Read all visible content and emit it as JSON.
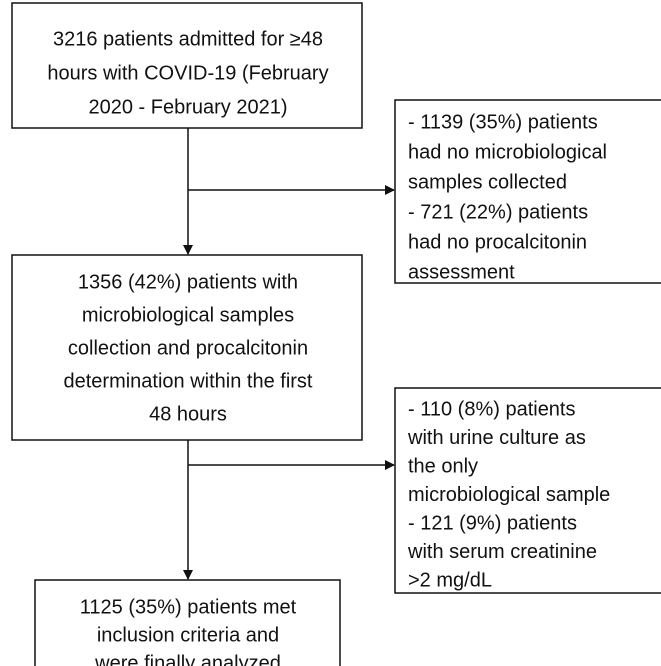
{
  "nodes": [
    {
      "lines": [
        "3216 patients admitted for ≥48",
        "hours with COVID-19 (February",
        "2020 - February 2021)"
      ]
    },
    {
      "lines": [
        "- 1139 (35%) patients",
        "had no microbiological",
        "samples collected",
        "- 721 (22%) patients",
        "had no procalcitonin",
        "assessment"
      ]
    },
    {
      "lines": [
        "1356 (42%) patients with",
        "microbiological samples",
        "collection and procalcitonin",
        "determination within the first",
        "48 hours"
      ]
    },
    {
      "lines": [
        "- 110 (8%) patients",
        "with urine culture as",
        "the only",
        "microbiological sample",
        "- 121 (9%) patients",
        "with serum creatinine",
        ">2 mg/dL"
      ]
    },
    {
      "lines": [
        "1125 (35%) patients met",
        "inclusion criteria and",
        "were finally analyzed"
      ]
    }
  ]
}
